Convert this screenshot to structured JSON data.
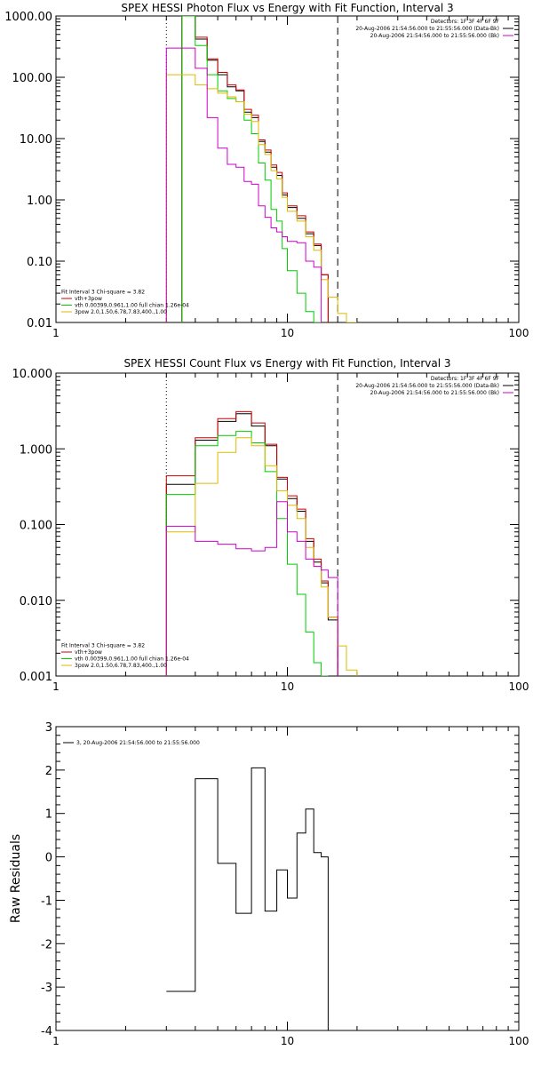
{
  "chart_data": [
    {
      "type": "line",
      "title": "SPEX HESSI Photon Flux vs Energy with Fit Function, Interval 3",
      "xlabel": "",
      "ylabel": "",
      "x_scale": "log",
      "y_scale": "log",
      "xlim": [
        1,
        100
      ],
      "ylim": [
        0.01,
        1000
      ],
      "x_ticks": [
        {
          "value": 1,
          "label": "1"
        },
        {
          "value": 10,
          "label": "10"
        },
        {
          "value": 100,
          "label": "100"
        }
      ],
      "y_ticks": [
        {
          "value": 0.01,
          "label": "0.01"
        },
        {
          "value": 0.1,
          "label": "0.10"
        },
        {
          "value": 1,
          "label": "1.00"
        },
        {
          "value": 10,
          "label": "10.00"
        },
        {
          "value": 100,
          "label": "100.00"
        },
        {
          "value": 1000,
          "label": "1000.00"
        }
      ],
      "vlines": [
        {
          "x": 3.0,
          "style": "dotted",
          "color": "#000000"
        },
        {
          "x": 16.5,
          "style": "dashed",
          "color": "#000000"
        }
      ],
      "legend_tr": [
        {
          "text": "Detectors: 1F 3F 4F 6F 9F",
          "color": null
        },
        {
          "text": "20-Aug-2006 21:54:56.000 to 21:55:56.000 (Data-Bk)",
          "color": "#000000"
        },
        {
          "text": "20-Aug-2006 21:54:56.000 to 21:55:56.000 (Bk)",
          "color": "#cc00cc"
        }
      ],
      "legend_bl": [
        {
          "text": "Fit Interval 3   Chi-square = 3.82",
          "color": null
        },
        {
          "text": "vth+3pow",
          "color": "#cc0000"
        },
        {
          "text": "vth 0.00399,0.961,1.00   full chian 1.26e-04",
          "color": "#00cc00"
        },
        {
          "text": "3pow 2.0,1.50,6.78,7.83,400.,1.00",
          "color": "#ddbb00"
        }
      ],
      "step_edges": [
        3.0,
        3.5,
        4.0,
        4.5,
        5.0,
        5.5,
        6.0,
        6.5,
        7.0,
        7.5,
        8.0,
        8.5,
        9.0,
        9.5,
        10.0,
        11.0,
        12.0,
        13.0,
        14.0,
        15.0,
        16.5,
        18.0,
        20.0
      ],
      "series": [
        {
          "name": "",
          "color": "#000000",
          "values": [
            null,
            1000,
            420,
            190,
            110,
            70,
            60,
            27,
            22,
            9.0,
            6.0,
            3.4,
            2.5,
            1.2,
            0.75,
            0.5,
            0.28,
            0.18,
            0.06,
            null,
            null,
            null
          ]
        },
        {
          "name": "vth+3pow",
          "color": "#cc0000",
          "values": [
            null,
            1000,
            450,
            200,
            120,
            75,
            62,
            30,
            24,
            9.5,
            6.5,
            3.7,
            2.8,
            1.3,
            0.8,
            0.55,
            0.3,
            0.19,
            0.06,
            null,
            null,
            null
          ]
        },
        {
          "name": "vth",
          "color": "#00cc00",
          "values": [
            null,
            1000,
            330,
            110,
            60,
            45,
            40,
            20,
            12,
            4.0,
            2.1,
            0.7,
            0.45,
            0.16,
            0.07,
            0.03,
            0.015,
            0.01,
            null,
            null,
            null,
            null
          ]
        },
        {
          "name": "3pow",
          "color": "#ddbb00",
          "values": [
            110,
            110,
            75,
            65,
            55,
            48,
            40,
            25,
            19,
            8.0,
            5.5,
            3.0,
            2.2,
            1.1,
            0.65,
            0.45,
            0.25,
            0.15,
            0.05,
            0.026,
            0.014,
            0.01
          ]
        },
        {
          "name": "Bk",
          "color": "#cc00cc",
          "values": [
            300,
            300,
            140,
            22,
            7.0,
            3.8,
            3.4,
            2.0,
            1.8,
            0.8,
            0.52,
            0.35,
            0.3,
            0.25,
            0.21,
            0.2,
            0.1,
            0.08,
            null,
            null,
            null,
            null
          ]
        }
      ]
    },
    {
      "type": "line",
      "title": "SPEX HESSI Count Flux vs Energy with Fit Function, Interval 3",
      "xlabel": "",
      "ylabel": "",
      "x_scale": "log",
      "y_scale": "log",
      "xlim": [
        1,
        100
      ],
      "ylim": [
        0.001,
        10
      ],
      "x_ticks": [
        {
          "value": 1,
          "label": "1"
        },
        {
          "value": 10,
          "label": "10"
        },
        {
          "value": 100,
          "label": "100"
        }
      ],
      "y_ticks": [
        {
          "value": 0.001,
          "label": "0.001"
        },
        {
          "value": 0.01,
          "label": "0.010"
        },
        {
          "value": 0.1,
          "label": "0.100"
        },
        {
          "value": 1,
          "label": "1.000"
        },
        {
          "value": 10,
          "label": "10.000"
        }
      ],
      "vlines": [
        {
          "x": 3.0,
          "style": "dotted",
          "color": "#000000"
        },
        {
          "x": 16.5,
          "style": "dashed",
          "color": "#000000"
        }
      ],
      "legend_tr": [
        {
          "text": "Detectors: 1F 3F 4F 6F 9F",
          "color": null
        },
        {
          "text": "20-Aug-2006 21:54:56.000 to 21:55:56.000 (Data-Bk)",
          "color": "#000000"
        },
        {
          "text": "20-Aug-2006 21:54:56.000 to 21:55:56.000 (Bk)",
          "color": "#cc00cc"
        }
      ],
      "legend_bl": [
        {
          "text": "Fit Interval 3   Chi-square = 3.82",
          "color": null
        },
        {
          "text": "vth+3pow",
          "color": "#cc0000"
        },
        {
          "text": "vth 0.00399,0.961,1.00   full chian 1.26e-04",
          "color": "#00cc00"
        },
        {
          "text": "3pow 2.0,1.50,6.78,7.83,400.,1.00",
          "color": "#ddbb00"
        }
      ],
      "step_edges": [
        3.0,
        4.0,
        5.0,
        6.0,
        7.0,
        8.0,
        9.0,
        10.0,
        11.0,
        12.0,
        13.0,
        14.0,
        15.0,
        16.5,
        18.0,
        20.0
      ],
      "series": [
        {
          "name": "",
          "color": "#000000",
          "values": [
            0.34,
            1.3,
            2.3,
            2.9,
            2.0,
            1.1,
            0.4,
            0.22,
            0.15,
            0.06,
            0.032,
            0.017,
            0.0055,
            null,
            null
          ]
        },
        {
          "name": "vth+3pow",
          "color": "#cc0000",
          "values": [
            0.44,
            1.4,
            2.5,
            3.1,
            2.2,
            1.15,
            0.42,
            0.24,
            0.16,
            0.065,
            0.035,
            0.018,
            0.006,
            null,
            null
          ]
        },
        {
          "name": "vth",
          "color": "#00cc00",
          "values": [
            0.25,
            1.1,
            1.5,
            1.7,
            1.2,
            0.5,
            0.12,
            0.03,
            0.012,
            0.0038,
            0.0015,
            0.001,
            null,
            null,
            null
          ]
        },
        {
          "name": "3pow",
          "color": "#ddbb00",
          "values": [
            0.08,
            0.35,
            0.9,
            1.4,
            1.1,
            0.6,
            0.28,
            0.18,
            0.12,
            0.05,
            0.028,
            0.015,
            0.006,
            0.0025,
            0.0012
          ]
        },
        {
          "name": "Bk",
          "color": "#cc00cc",
          "values": [
            0.095,
            0.06,
            0.055,
            0.048,
            0.045,
            0.05,
            0.2,
            0.08,
            0.06,
            0.035,
            0.028,
            0.025,
            0.02,
            null,
            null
          ]
        }
      ]
    },
    {
      "type": "line",
      "title": "",
      "xlabel": "",
      "ylabel": "Raw Residuals",
      "x_scale": "log",
      "y_scale": "linear",
      "xlim": [
        1,
        100
      ],
      "ylim": [
        -4,
        3
      ],
      "x_ticks": [
        {
          "value": 1,
          "label": "1"
        },
        {
          "value": 10,
          "label": "10"
        },
        {
          "value": 100,
          "label": "100"
        }
      ],
      "y_ticks": [
        {
          "value": -4,
          "label": "-4"
        },
        {
          "value": -3,
          "label": "-3"
        },
        {
          "value": -2,
          "label": "-2"
        },
        {
          "value": -1,
          "label": "-1"
        },
        {
          "value": 0,
          "label": "0"
        },
        {
          "value": 1,
          "label": "1"
        },
        {
          "value": 2,
          "label": "2"
        },
        {
          "value": 3,
          "label": "3"
        }
      ],
      "vlines": [],
      "legend_tl": [
        {
          "text": "3, 20-Aug-2006 21:54:56.000 to 21:55:56.000",
          "color": "#000000"
        }
      ],
      "step_edges": [
        3.0,
        4.0,
        5.0,
        6.0,
        7.0,
        8.0,
        9.0,
        10.0,
        11.0,
        12.0,
        13.0,
        14.0,
        15.0,
        16.5
      ],
      "series": [
        {
          "name": "3, 20-Aug-2006 21:54:56.000 to 21:55:56.000",
          "color": "#000000",
          "values": [
            -3.1,
            1.8,
            -0.15,
            -1.3,
            2.05,
            -1.25,
            -0.3,
            -0.95,
            0.55,
            1.1,
            0.1,
            0.0,
            null
          ]
        }
      ]
    }
  ]
}
